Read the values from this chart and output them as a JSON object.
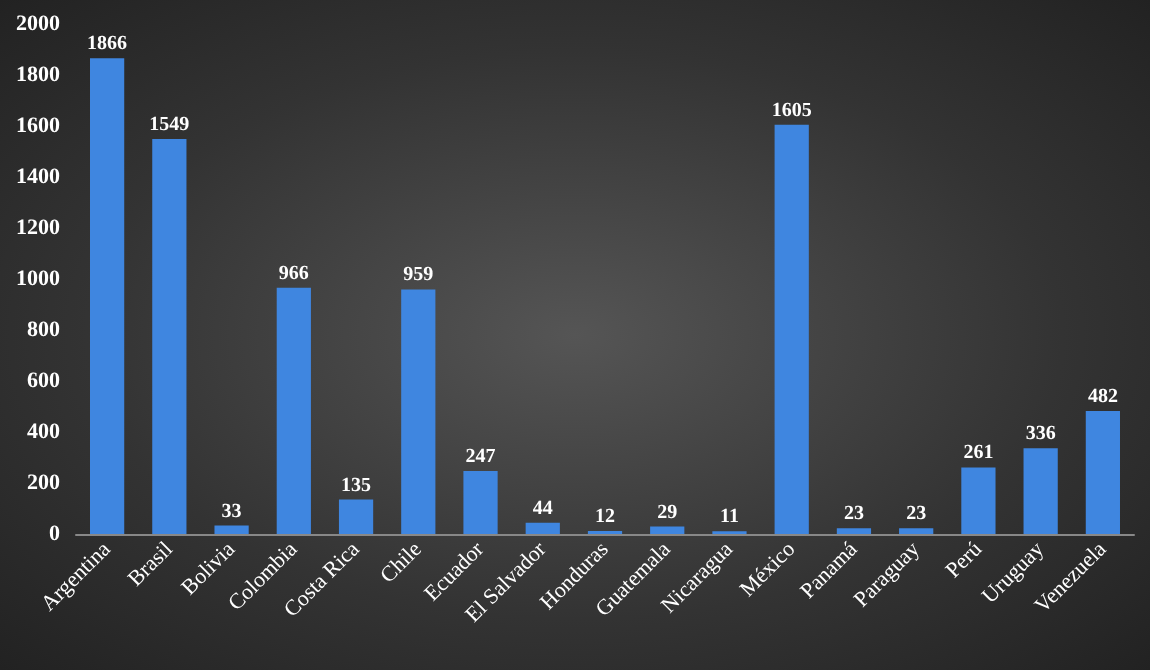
{
  "chart_data": {
    "type": "bar",
    "categories": [
      "Argentina",
      "Brasil",
      "Bolivia",
      "Colombia",
      "Costa Rica",
      "Chile",
      "Ecuador",
      "El Salvador",
      "Honduras",
      "Guatemala",
      "Nicaragua",
      "México",
      "Panamá",
      "Paraguay",
      "Perú",
      "Uruguay",
      "Venezuela"
    ],
    "values": [
      1866,
      1549,
      33,
      966,
      135,
      959,
      247,
      44,
      12,
      29,
      11,
      1605,
      23,
      23,
      261,
      336,
      482
    ],
    "color": "#3f86e0",
    "ylim": [
      0,
      2000
    ],
    "yticks": [
      0,
      200,
      400,
      600,
      800,
      1000,
      1200,
      1400,
      1600,
      1800,
      2000
    ],
    "grid": false,
    "data_labels": true
  }
}
